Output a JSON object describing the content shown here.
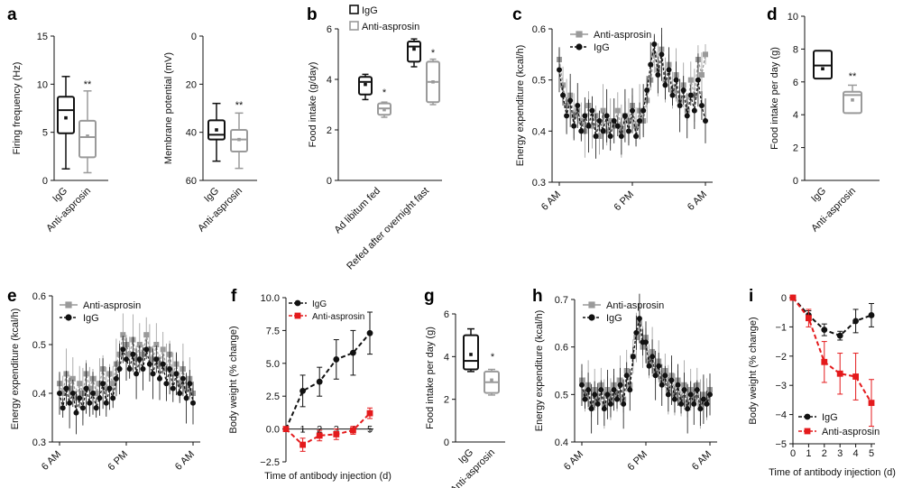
{
  "figure": {
    "panel_letters": [
      "a",
      "b",
      "c",
      "d",
      "e",
      "f",
      "g",
      "h",
      "i"
    ],
    "significance": {
      "a_firing": "**",
      "a_membrane": "**",
      "b_ad_libitum": "*",
      "b_refed": "*",
      "d": "**",
      "g": "*"
    }
  },
  "colors": {
    "igg": "#111111",
    "anti_asprosin": "#9a9a9a",
    "anti_asprosin_red": "#e41a1c"
  },
  "chart_data": [
    {
      "id": "a-firing",
      "type": "box",
      "panel": "a",
      "xlabel": "",
      "ylabel": "Firing frequency (Hz)",
      "ylim": [
        0,
        15
      ],
      "yticks": [
        "0",
        "5",
        "10",
        "15"
      ],
      "categories": [
        "IgG",
        "Anti-asprosin"
      ],
      "boxes": [
        {
          "group": "IgG",
          "min": 1.2,
          "q1": 4.9,
          "median": 7.3,
          "q3": 8.7,
          "max": 10.8,
          "mean": 6.5
        },
        {
          "group": "Anti-asprosin",
          "min": 0.8,
          "q1": 2.4,
          "median": 4.5,
          "q3": 6.2,
          "max": 9.3,
          "mean": 4.6
        }
      ]
    },
    {
      "id": "a-membrane",
      "type": "box",
      "panel": "a",
      "xlabel": "",
      "ylabel": "Membrane potential (mV)",
      "ylim": [
        0,
        60
      ],
      "y_inverted": true,
      "yticks": [
        "0",
        "20",
        "40",
        "60"
      ],
      "categories": [
        "IgG",
        "Anti-asprosin"
      ],
      "boxes": [
        {
          "group": "IgG",
          "min": 28,
          "q1": 35,
          "median": 41,
          "q3": 43,
          "max": 52,
          "mean": 39
        },
        {
          "group": "Anti-asprosin",
          "min": 32,
          "q1": 39,
          "median": 43,
          "q3": 48,
          "max": 55,
          "mean": 43
        }
      ]
    },
    {
      "id": "b",
      "type": "box",
      "panel": "b",
      "xlabel": "",
      "ylabel": "Food intake (g/day)",
      "ylim": [
        0,
        6
      ],
      "yticks": [
        "0",
        "2",
        "4",
        "6"
      ],
      "legend": [
        "IgG",
        "Anti-asprosin"
      ],
      "legend_position": "top",
      "categories": [
        "Ad libitum fed",
        "Refed after overnight fast"
      ],
      "boxes": [
        {
          "group": "IgG",
          "category": "Ad libitum fed",
          "min": 3.2,
          "q1": 3.4,
          "median": 3.9,
          "q3": 4.1,
          "max": 4.2,
          "mean": 3.8
        },
        {
          "group": "Anti-asprosin",
          "category": "Ad libitum fed",
          "min": 2.5,
          "q1": 2.6,
          "median": 2.85,
          "q3": 3.05,
          "max": 3.1,
          "mean": 2.8
        },
        {
          "group": "IgG",
          "category": "Refed after overnight fast",
          "min": 4.5,
          "q1": 4.7,
          "median": 5.3,
          "q3": 5.5,
          "max": 5.6,
          "mean": 5.2
        },
        {
          "group": "Anti-asprosin",
          "category": "Refed after overnight fast",
          "min": 3.0,
          "q1": 3.1,
          "median": 3.9,
          "q3": 4.7,
          "max": 4.8,
          "mean": 3.9
        }
      ]
    },
    {
      "id": "c",
      "type": "line",
      "panel": "c",
      "xlabel": "",
      "ylabel": "Energy expenditure (kcal/h)",
      "ylim": [
        0.3,
        0.6
      ],
      "yticks": [
        "0.3",
        "0.4",
        "0.5",
        "0.6"
      ],
      "xticks": [
        "6 AM",
        "6 PM",
        "6 AM"
      ],
      "legend_position": "top",
      "series": [
        {
          "name": "Anti-asprosin",
          "marker": "square",
          "values": [
            0.54,
            0.49,
            0.45,
            0.47,
            0.43,
            0.44,
            0.42,
            0.4,
            0.45,
            0.41,
            0.43,
            0.39,
            0.44,
            0.4,
            0.42,
            0.41,
            0.44,
            0.4,
            0.43,
            0.42,
            0.45,
            0.41,
            0.44,
            0.42,
            0.46,
            0.5,
            0.55,
            0.52,
            0.56,
            0.5,
            0.53,
            0.48,
            0.51,
            0.46,
            0.49,
            0.44,
            0.5,
            0.47,
            0.54,
            0.51,
            0.55
          ]
        },
        {
          "name": "IgG",
          "marker": "circle",
          "values": [
            0.52,
            0.47,
            0.43,
            0.46,
            0.41,
            0.45,
            0.4,
            0.43,
            0.41,
            0.44,
            0.39,
            0.42,
            0.4,
            0.43,
            0.39,
            0.42,
            0.41,
            0.39,
            0.43,
            0.4,
            0.44,
            0.39,
            0.42,
            0.44,
            0.48,
            0.53,
            0.57,
            0.51,
            0.55,
            0.49,
            0.52,
            0.47,
            0.5,
            0.45,
            0.48,
            0.43,
            0.47,
            0.44,
            0.5,
            0.45,
            0.42
          ]
        }
      ]
    },
    {
      "id": "d",
      "type": "box",
      "panel": "d",
      "xlabel": "",
      "ylabel": "Food intake per day (g)",
      "ylim": [
        0,
        10
      ],
      "yticks": [
        "0",
        "2",
        "4",
        "6",
        "8",
        "10"
      ],
      "categories": [
        "IgG",
        "Anti-asprosin"
      ],
      "boxes": [
        {
          "group": "IgG",
          "min": 6.2,
          "q1": 6.2,
          "median": 7.0,
          "q3": 7.9,
          "max": 7.9,
          "mean": 6.8
        },
        {
          "group": "Anti-asprosin",
          "min": 4.1,
          "q1": 4.1,
          "median": 5.2,
          "q3": 5.4,
          "max": 5.8,
          "mean": 4.9
        }
      ]
    },
    {
      "id": "e",
      "type": "line",
      "panel": "e",
      "xlabel": "",
      "ylabel": "Energy expenditure (kcal/h)",
      "ylim": [
        0.3,
        0.6
      ],
      "yticks": [
        "0.3",
        "0.4",
        "0.5",
        "0.6"
      ],
      "xticks": [
        "6 AM",
        "6 PM",
        "6 AM"
      ],
      "legend_position": "top-left",
      "series": [
        {
          "name": "Anti-asprosin",
          "marker": "square",
          "values": [
            0.42,
            0.4,
            0.44,
            0.41,
            0.43,
            0.39,
            0.42,
            0.4,
            0.44,
            0.41,
            0.43,
            0.4,
            0.42,
            0.45,
            0.41,
            0.44,
            0.42,
            0.46,
            0.48,
            0.52,
            0.5,
            0.48,
            0.51,
            0.47,
            0.5,
            0.48,
            0.52,
            0.49,
            0.47,
            0.5,
            0.46,
            0.49,
            0.45,
            0.48,
            0.44,
            0.46,
            0.42,
            0.45,
            0.41,
            0.43,
            0.4
          ]
        },
        {
          "name": "IgG",
          "marker": "circle",
          "values": [
            0.4,
            0.37,
            0.41,
            0.38,
            0.4,
            0.36,
            0.39,
            0.37,
            0.41,
            0.38,
            0.4,
            0.37,
            0.39,
            0.42,
            0.38,
            0.41,
            0.39,
            0.43,
            0.45,
            0.49,
            0.47,
            0.45,
            0.48,
            0.44,
            0.47,
            0.45,
            0.49,
            0.46,
            0.44,
            0.47,
            0.43,
            0.46,
            0.42,
            0.45,
            0.41,
            0.44,
            0.4,
            0.43,
            0.39,
            0.42,
            0.38
          ]
        }
      ]
    },
    {
      "id": "f",
      "type": "line",
      "panel": "f",
      "xlabel": "Time of antibody injection (d)",
      "ylabel": "Body weight (% change)",
      "ylim": [
        -2.5,
        10
      ],
      "yticks": [
        "−2.5",
        "0.0",
        "2.5",
        "5.0",
        "7.5",
        "10.0"
      ],
      "xticks": [
        "1",
        "2",
        "3",
        "4",
        "5"
      ],
      "legend_position": "top-left",
      "series": [
        {
          "name": "IgG",
          "color": "#111111",
          "marker": "circle",
          "x": [
            0,
            1,
            2,
            3,
            4,
            5
          ],
          "values": [
            0,
            2.9,
            3.6,
            5.3,
            5.8,
            7.3
          ],
          "err": [
            0,
            1.2,
            1.1,
            1.5,
            1.7,
            1.6
          ]
        },
        {
          "name": "Anti-asprosin",
          "color": "#e41a1c",
          "marker": "square",
          "x": [
            0,
            1,
            2,
            3,
            4,
            5
          ],
          "values": [
            0,
            -1.2,
            -0.5,
            -0.4,
            -0.1,
            1.2
          ],
          "err": [
            0,
            0.5,
            0.4,
            0.4,
            0.3,
            0.4
          ]
        }
      ]
    },
    {
      "id": "g",
      "type": "box",
      "panel": "g",
      "xlabel": "",
      "ylabel": "Food intake per day (g)",
      "ylim": [
        0,
        6
      ],
      "yticks": [
        "0",
        "2",
        "4",
        "6"
      ],
      "categories": [
        "IgG",
        "Anti-asprosin"
      ],
      "boxes": [
        {
          "group": "IgG",
          "min": 3.3,
          "q1": 3.4,
          "median": 3.8,
          "q3": 5.0,
          "max": 5.3,
          "mean": 4.1
        },
        {
          "group": "Anti-asprosin",
          "min": 2.2,
          "q1": 2.3,
          "median": 2.8,
          "q3": 3.3,
          "max": 3.4,
          "mean": 2.9
        }
      ]
    },
    {
      "id": "h",
      "type": "line",
      "panel": "h",
      "xlabel": "",
      "ylabel": "Energy expenditure (kcal/h)",
      "ylim": [
        0.4,
        0.7
      ],
      "yticks": [
        "0.4",
        "0.5",
        "0.6",
        "0.7"
      ],
      "xticks": [
        "6 AM",
        "6 PM",
        "6 AM"
      ],
      "legend_position": "top-left",
      "series": [
        {
          "name": "Anti-asprosin",
          "marker": "square",
          "values": [
            0.53,
            0.5,
            0.52,
            0.48,
            0.51,
            0.49,
            0.52,
            0.48,
            0.51,
            0.49,
            0.52,
            0.5,
            0.53,
            0.49,
            0.55,
            0.52,
            0.58,
            0.62,
            0.65,
            0.6,
            0.62,
            0.57,
            0.59,
            0.55,
            0.57,
            0.53,
            0.55,
            0.51,
            0.54,
            0.5,
            0.53,
            0.49,
            0.52,
            0.48,
            0.51,
            0.49,
            0.52,
            0.48,
            0.5,
            0.49,
            0.51
          ]
        },
        {
          "name": "IgG",
          "marker": "circle",
          "values": [
            0.52,
            0.49,
            0.51,
            0.47,
            0.5,
            0.48,
            0.51,
            0.47,
            0.5,
            0.48,
            0.51,
            0.49,
            0.52,
            0.48,
            0.54,
            0.51,
            0.58,
            0.63,
            0.66,
            0.61,
            0.61,
            0.56,
            0.58,
            0.54,
            0.56,
            0.52,
            0.54,
            0.5,
            0.53,
            0.49,
            0.52,
            0.48,
            0.51,
            0.47,
            0.5,
            0.48,
            0.51,
            0.47,
            0.49,
            0.48,
            0.5
          ]
        }
      ]
    },
    {
      "id": "i",
      "type": "line",
      "panel": "i",
      "xlabel": "Time of antibody injection (d)",
      "ylabel": "Body weight (% change)",
      "ylim": [
        -5,
        0
      ],
      "yticks": [
        "−5",
        "−4",
        "−3",
        "−2",
        "−1",
        "0"
      ],
      "xticks": [
        "0",
        "1",
        "2",
        "3",
        "4",
        "5"
      ],
      "legend_position": "bottom-left",
      "series": [
        {
          "name": "IgG",
          "color": "#111111",
          "marker": "circle",
          "x": [
            0,
            1,
            2,
            3,
            4,
            5
          ],
          "values": [
            0,
            -0.6,
            -1.1,
            -1.3,
            -0.8,
            -0.6
          ],
          "err": [
            0,
            0.15,
            0.2,
            0.15,
            0.4,
            0.4
          ]
        },
        {
          "name": "Anti-asprosin",
          "color": "#e41a1c",
          "marker": "square",
          "x": [
            0,
            1,
            2,
            3,
            4,
            5
          ],
          "values": [
            0,
            -0.7,
            -2.2,
            -2.6,
            -2.7,
            -3.6
          ],
          "err": [
            0,
            0.3,
            0.7,
            0.7,
            0.8,
            0.8
          ]
        }
      ]
    }
  ]
}
